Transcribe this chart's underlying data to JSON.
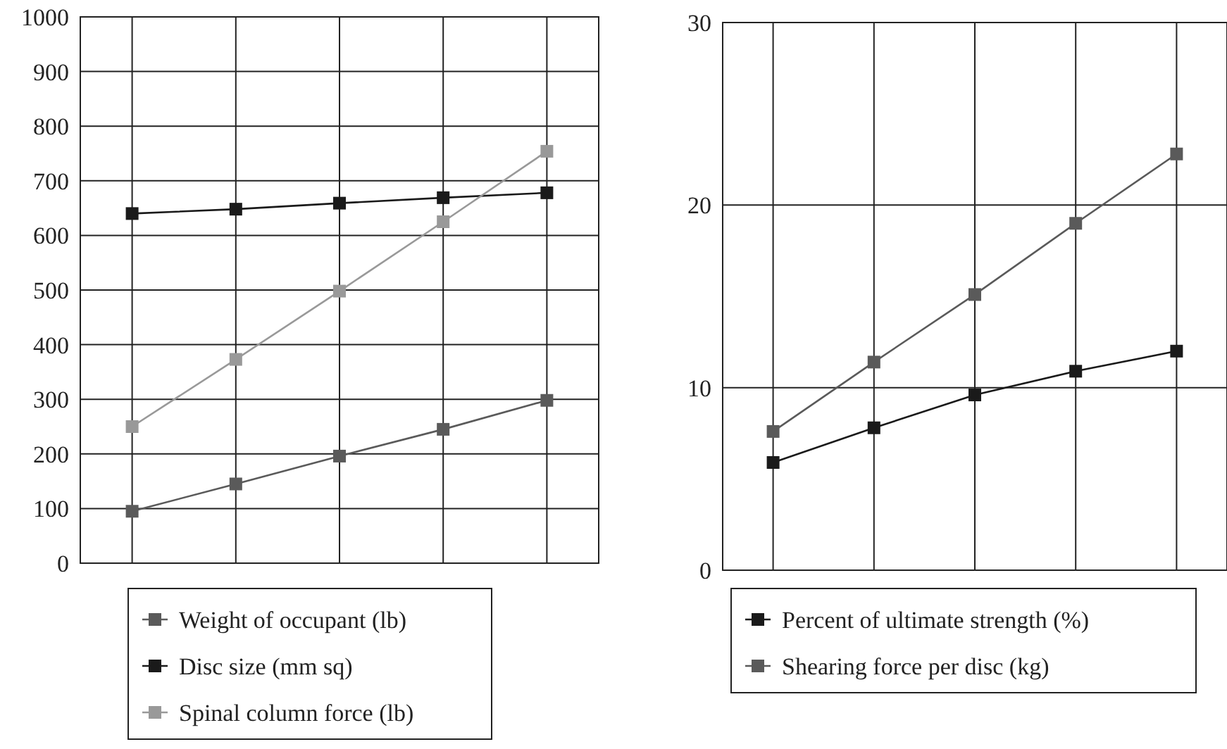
{
  "chart_data": [
    {
      "type": "line",
      "categories": [
        null,
        null,
        null,
        null,
        null
      ],
      "ylim": [
        0,
        1000
      ],
      "yticks": [
        0,
        100,
        200,
        300,
        400,
        500,
        600,
        700,
        800,
        900,
        1000
      ],
      "grid": true,
      "legend": "bottom",
      "marker": "square",
      "line_style": "solid",
      "tick_labels": "y",
      "series": [
        {
          "name": "Weight of occupant (lb)",
          "color": "#5a5a5a",
          "values": [
            95,
            145,
            196,
            245,
            298
          ]
        },
        {
          "name": "Disc size (mm sq)",
          "color": "#1a1a1a",
          "values": [
            640,
            648,
            659,
            669,
            678
          ]
        },
        {
          "name": "Spinal column force (lb)",
          "color": "#999999",
          "values": [
            250,
            373,
            498,
            625,
            754
          ]
        }
      ]
    },
    {
      "type": "line",
      "categories": [
        null,
        null,
        null,
        null,
        null
      ],
      "ylim": [
        0,
        30
      ],
      "yticks": [
        0,
        10,
        20,
        30
      ],
      "grid": true,
      "legend": "bottom",
      "marker": "square",
      "line_style": "solid",
      "tick_labels": "y",
      "series": [
        {
          "name": "Percent of ultimate strength (%)",
          "color": "#1a1a1a",
          "values": [
            5.9,
            7.8,
            9.6,
            10.9,
            12.0
          ]
        },
        {
          "name": "Shearing force per disc (kg)",
          "color": "#5a5a5a",
          "values": [
            7.6,
            11.4,
            15.1,
            19.0,
            22.8
          ]
        }
      ]
    }
  ]
}
